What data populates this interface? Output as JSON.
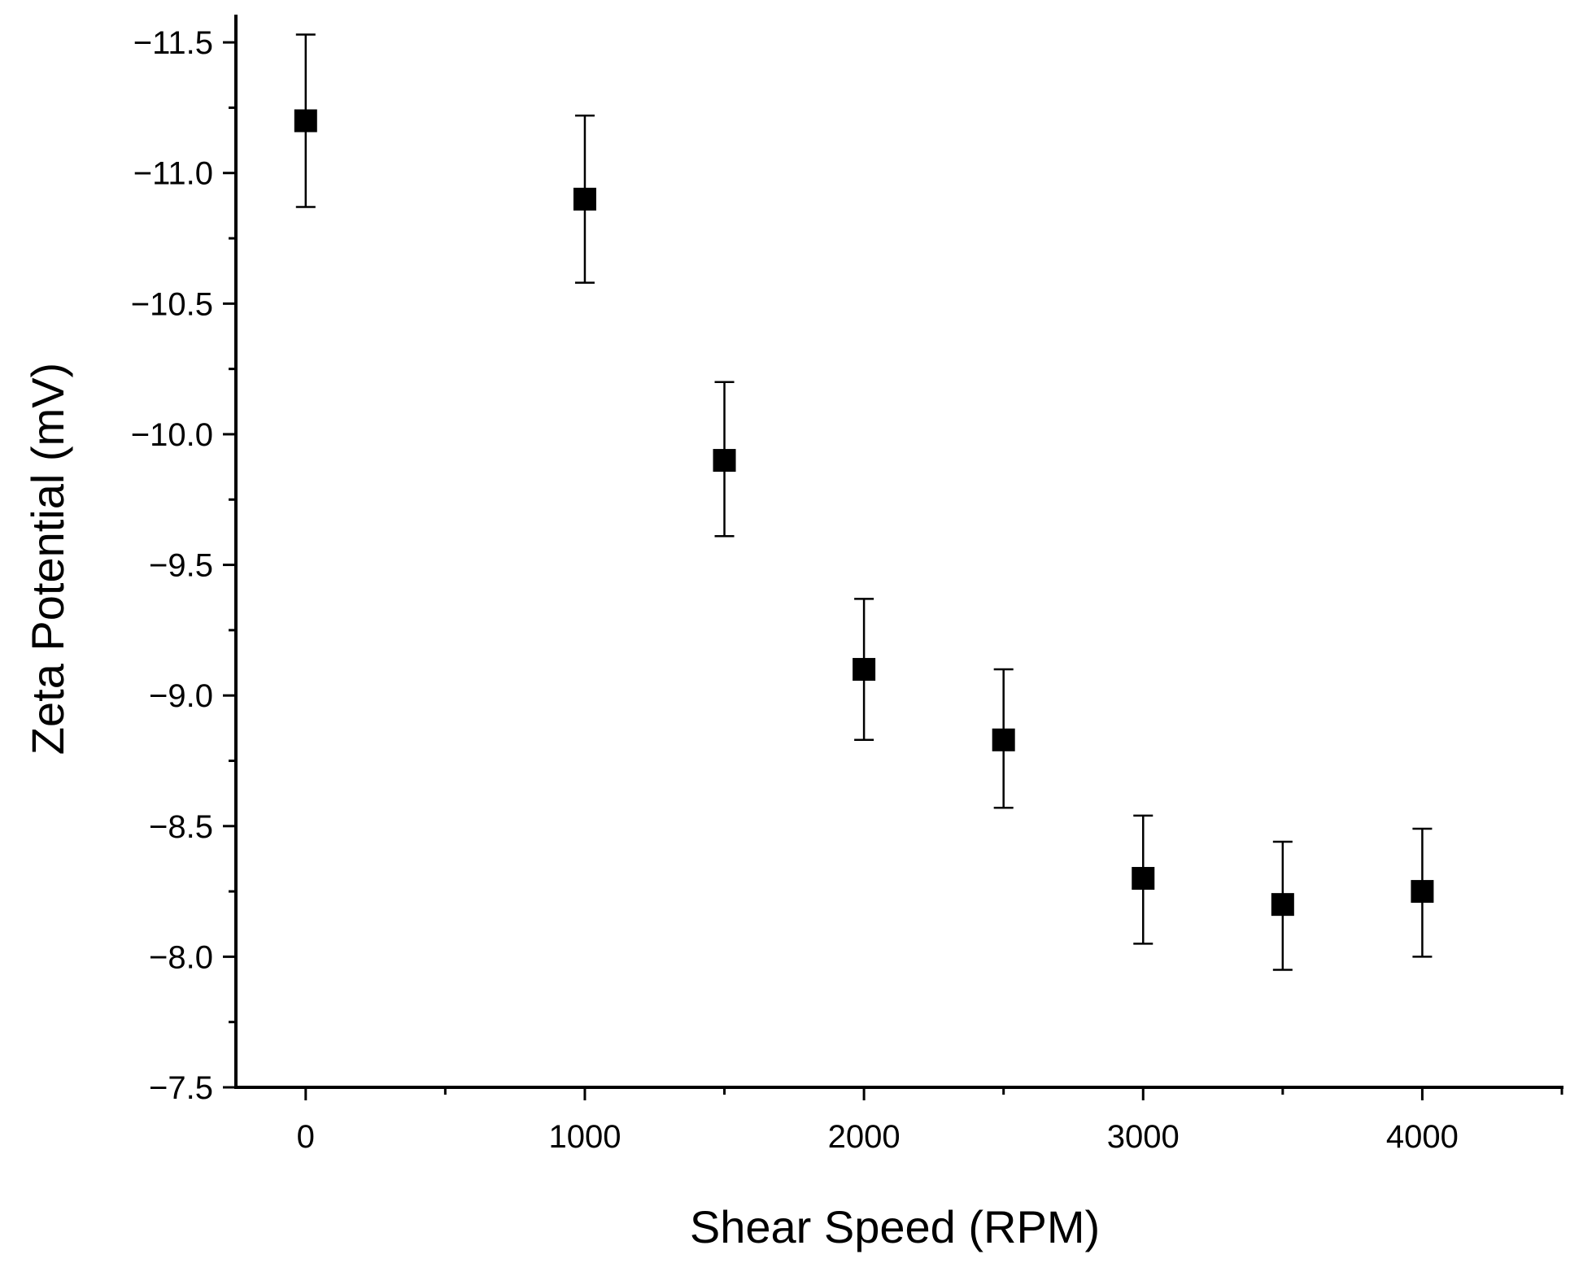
{
  "chart_data": {
    "type": "scatter",
    "title": "",
    "xlabel": "Shear Speed (RPM)",
    "ylabel": "Zeta Potential (mV)",
    "xlim": [
      -250,
      4500
    ],
    "ylim": [
      -7.5,
      -11.6
    ],
    "y_axis_inverted": true,
    "x_ticks": [
      0,
      1000,
      2000,
      3000,
      4000
    ],
    "x_tick_labels": [
      "0",
      "1000",
      "2000",
      "3000",
      "4000"
    ],
    "y_ticks": [
      -7.5,
      -8.0,
      -8.5,
      -9.0,
      -9.5,
      -10.0,
      -10.5,
      -11.0,
      -11.5
    ],
    "y_tick_labels": [
      "−7.5",
      "−8.0",
      "−8.5",
      "−9.0",
      "−9.5",
      "−10.0",
      "−10.5",
      "−11.0",
      "−11.5"
    ],
    "grid": false,
    "marker": "square",
    "color": "#000000",
    "series": [
      {
        "name": "Zeta Potential",
        "x": [
          0,
          1000,
          1500,
          2000,
          2500,
          3000,
          3500,
          4000
        ],
        "y": [
          -11.2,
          -10.9,
          -9.9,
          -9.1,
          -8.83,
          -8.3,
          -8.2,
          -8.25
        ],
        "error_upper": [
          -11.53,
          -11.22,
          -10.2,
          -9.37,
          -9.1,
          -8.54,
          -8.44,
          -8.49
        ],
        "error_lower": [
          -10.87,
          -10.58,
          -9.61,
          -8.83,
          -8.57,
          -8.05,
          -7.95,
          -8.0
        ]
      }
    ]
  }
}
